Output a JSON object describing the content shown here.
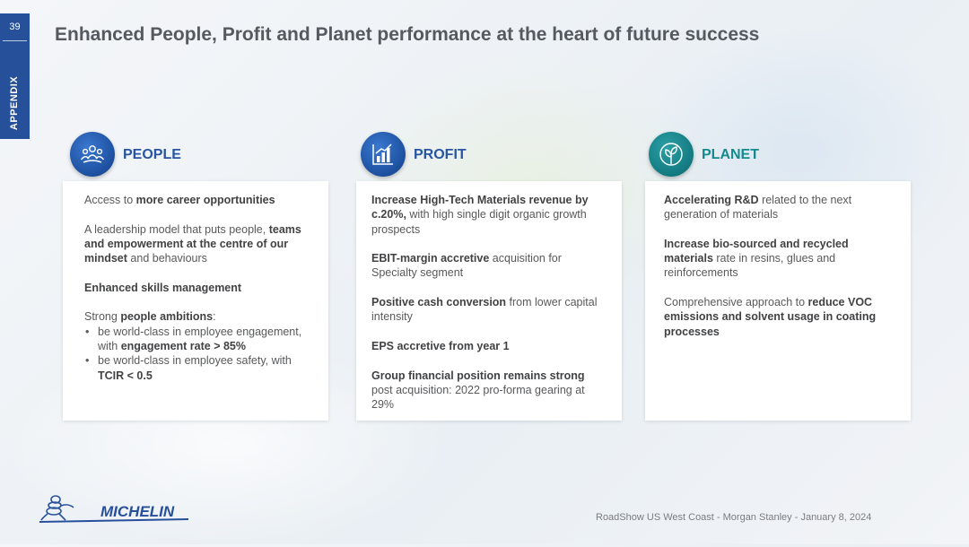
{
  "slide": {
    "page_number": "39",
    "section_label": "APPENDIX",
    "title": "Enhanced People, Profit and Planet performance at the heart of future success"
  },
  "columns": [
    {
      "heading": "PEOPLE",
      "icon": "people-group-icon",
      "color": "#2855a3",
      "paragraphs": [
        [
          {
            "t": "Access to "
          },
          {
            "t": "more career opportunities",
            "b": true
          }
        ],
        [
          {
            "t": "A leadership model that puts people, "
          },
          {
            "t": "teams and empowerment at the centre of our mindset",
            "b": true
          },
          {
            "t": " and behaviours"
          }
        ],
        [
          {
            "t": "Enhanced skills management",
            "b": true
          }
        ],
        [
          {
            "t": "Strong "
          },
          {
            "t": "people ambitions",
            "b": true
          },
          {
            "t": ":"
          }
        ]
      ],
      "bullets": [
        [
          {
            "t": "be world-class in employee engagement, with "
          },
          {
            "t": "engagement rate > 85%",
            "b": true
          }
        ],
        [
          {
            "t": "be world-class in employee safety, with "
          },
          {
            "t": "TCIR < 0.5",
            "b": true
          }
        ]
      ]
    },
    {
      "heading": "PROFIT",
      "icon": "bar-chart-icon",
      "color": "#2855a3",
      "paragraphs": [
        [
          {
            "t": "Increase High-Tech Materials revenue by c.20%,",
            "b": true
          },
          {
            "t": " with high single digit organic growth prospects"
          }
        ],
        [
          {
            "t": "EBIT-margin accretive",
            "b": true
          },
          {
            "t": " acquisition for Specialty segment"
          }
        ],
        [
          {
            "t": "Positive cash conversion",
            "b": true
          },
          {
            "t": " from lower capital intensity"
          }
        ],
        [
          {
            "t": "EPS accretive from year 1",
            "b": true
          }
        ],
        [
          {
            "t": "Group financial position remains strong",
            "b": true
          },
          {
            "t": " post acquisition: 2022 pro-forma gearing at 29%"
          }
        ]
      ],
      "bullets": []
    },
    {
      "heading": "PLANET",
      "icon": "leaf-globe-icon",
      "color": "#138a8f",
      "paragraphs": [
        [
          {
            "t": "Accelerating R&D",
            "b": true
          },
          {
            "t": " related to the next generation of materials"
          }
        ],
        [
          {
            "t": "Increase bio-sourced and recycled materials",
            "b": true
          },
          {
            "t": " rate in resins, glues and reinforcements"
          }
        ],
        [
          {
            "t": "Comprehensive approach to "
          },
          {
            "t": "reduce VOC emissions and solvent usage in coating processes",
            "b": true
          }
        ]
      ],
      "bullets": []
    }
  ],
  "logo": {
    "text": "MICHELIN",
    "color": "#27509b"
  },
  "footer": "RoadShow US West Coast - Morgan Stanley - January 8, 2024"
}
